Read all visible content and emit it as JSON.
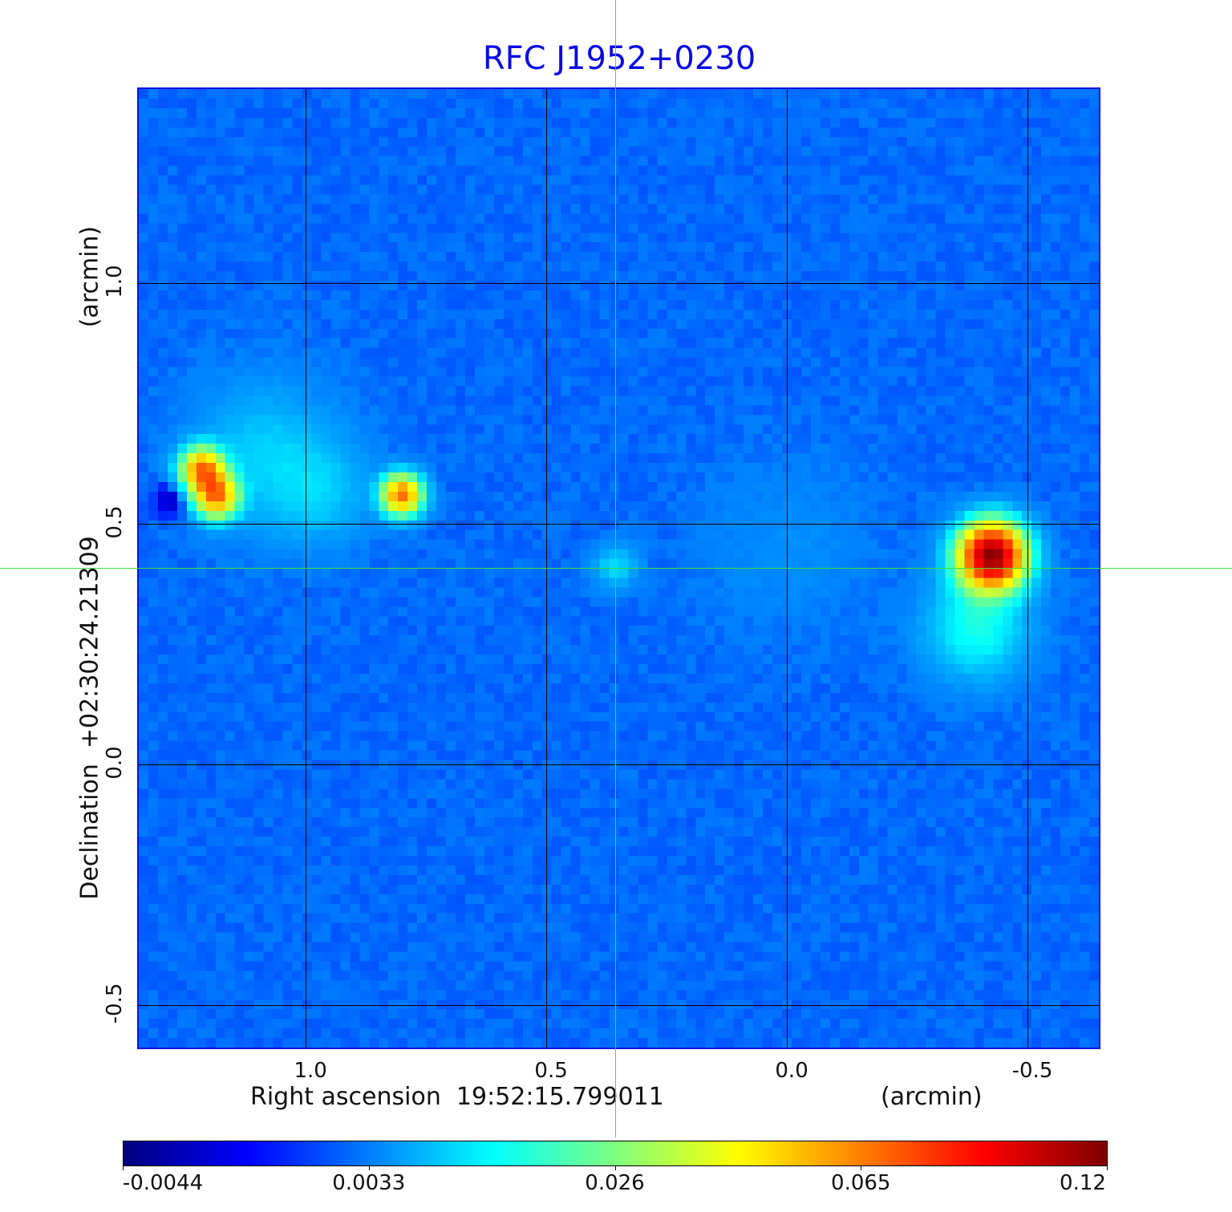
{
  "chart_data": {
    "type": "heatmap",
    "title": "RFC J1952+0230",
    "xlabel": "Right ascension  19:52:15.799011",
    "xunit": "(arcmin)",
    "ylabel": "Declination  +02:30:24.21309",
    "yunit": "(arcmin)",
    "xlim": [
      1.347,
      -0.655
    ],
    "ylim": [
      -0.595,
      1.403
    ],
    "xticks": [
      1.0,
      0.5,
      0.0,
      -0.5
    ],
    "xtick_labels": [
      "1.0",
      "0.5",
      "0.0",
      "-0.5"
    ],
    "yticks": [
      1.0,
      0.5,
      0.0,
      -0.5
    ],
    "ytick_labels": [
      "1.0",
      "0.5",
      "0.0",
      "-0.5"
    ],
    "grid": true,
    "crosshair": {
      "ra": 0.353,
      "dec": 0.405
    },
    "colormap": "jet",
    "colorbar": {
      "ticks": [
        -0.0044,
        0.0033,
        0.026,
        0.065,
        0.12
      ],
      "tick_labels": [
        "-0.0044",
        "0.0033",
        "0.026",
        "0.065",
        "0.12"
      ],
      "placement": "bottom"
    },
    "background_level": 0.0026,
    "sources": [
      {
        "name": "west-lobe-hotspot-1",
        "ra": 1.215,
        "dec": 0.61,
        "peak": 0.062,
        "sigma": 0.03
      },
      {
        "name": "west-lobe-hotspot-2",
        "ra": 1.185,
        "dec": 0.555,
        "peak": 0.062,
        "sigma": 0.03
      },
      {
        "name": "west-lobe-diffuse",
        "ra": 1.08,
        "dec": 0.64,
        "peak": 0.0075,
        "sigma": 0.1
      },
      {
        "name": "west-lobe-diffuse-2",
        "ra": 0.97,
        "dec": 0.56,
        "peak": 0.006,
        "sigma": 0.07
      },
      {
        "name": "west-knot",
        "ra": 0.798,
        "dec": 0.557,
        "peak": 0.065,
        "sigma": 0.028
      },
      {
        "name": "core",
        "ra": 0.353,
        "dec": 0.408,
        "peak": 0.009,
        "sigma": 0.03
      },
      {
        "name": "east-hotspot",
        "ra": -0.432,
        "dec": 0.43,
        "peak": 0.115,
        "sigma": 0.045
      },
      {
        "name": "east-lobe-tail",
        "ra": -0.4,
        "dec": 0.28,
        "peak": 0.014,
        "sigma": 0.07
      },
      {
        "name": "bridge",
        "ra": 0.0,
        "dec": 0.45,
        "peak": 0.002,
        "sigma": 0.12
      },
      {
        "name": "negative-dip",
        "ra": 1.277,
        "dec": 0.548,
        "peak": -0.007,
        "sigma": 0.025
      }
    ]
  }
}
